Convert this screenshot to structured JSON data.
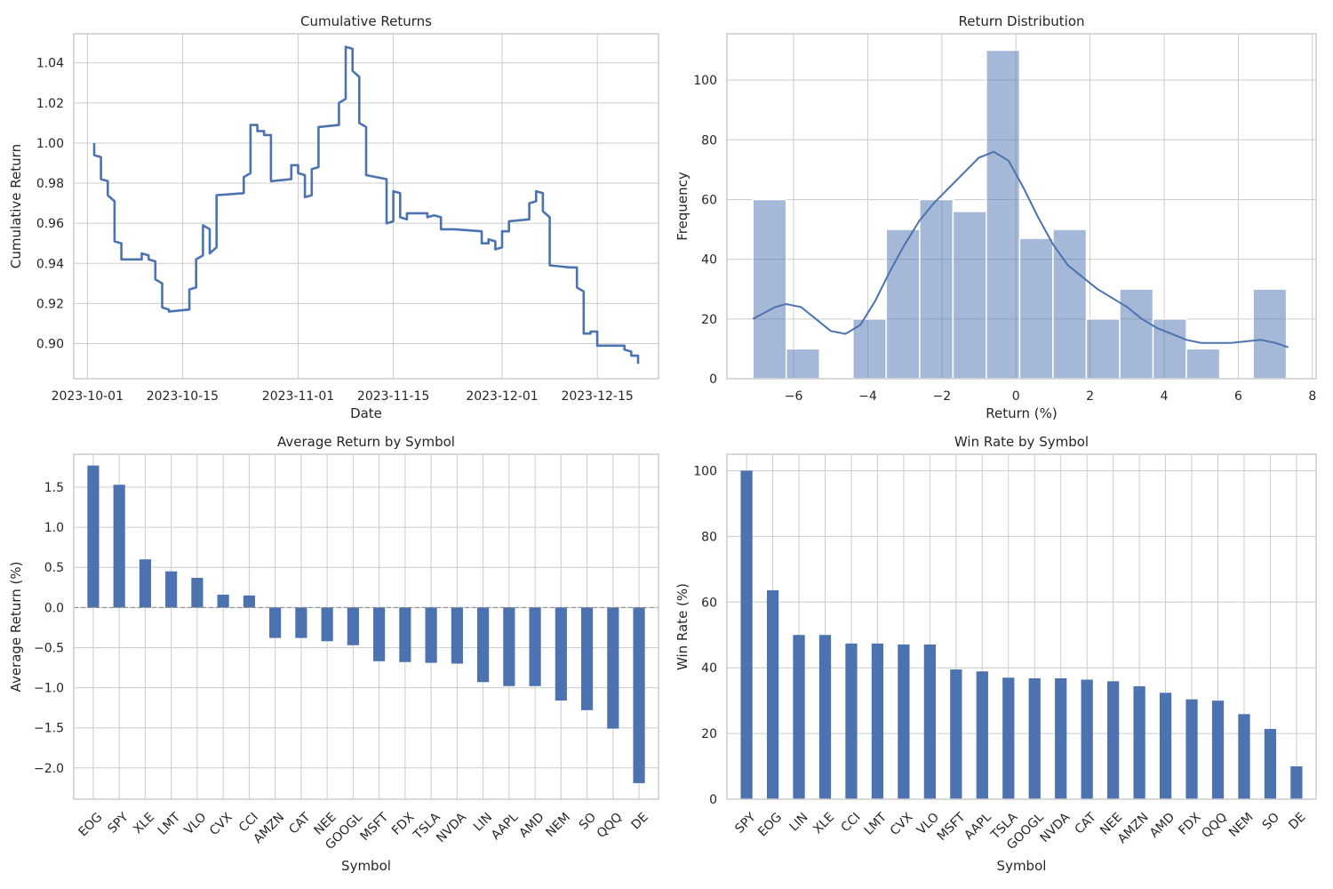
{
  "chart_data": [
    {
      "type": "line",
      "title": "Cumulative Returns",
      "xlabel": "Date",
      "ylabel": "Cumulative Return",
      "x_tick_labels": [
        "2023-10-01",
        "2023-10-15",
        "2023-11-01",
        "2023-11-15",
        "2023-12-01",
        "2023-12-15"
      ],
      "x_tick_dates": [
        "2023-10-01",
        "2023-10-15",
        "2023-11-01",
        "2023-11-15",
        "2023-12-01",
        "2023-12-15"
      ],
      "y_tick_labels": [
        "0.90",
        "0.92",
        "0.94",
        "0.96",
        "0.98",
        "1.00",
        "1.02",
        "1.04"
      ],
      "xlim": [
        "2023-09-29",
        "2023-12-24"
      ],
      "ylim": [
        0.8825,
        1.0545
      ],
      "grid": true,
      "color": "#4c72b0",
      "points": [
        [
          "2023-10-02",
          1.0
        ],
        [
          "2023-10-02",
          0.994
        ],
        [
          "2023-10-03",
          0.993
        ],
        [
          "2023-10-03",
          0.982
        ],
        [
          "2023-10-04",
          0.981
        ],
        [
          "2023-10-04",
          0.974
        ],
        [
          "2023-10-05",
          0.971
        ],
        [
          "2023-10-05",
          0.951
        ],
        [
          "2023-10-06",
          0.95
        ],
        [
          "2023-10-06",
          0.942
        ],
        [
          "2023-10-09",
          0.942
        ],
        [
          "2023-10-09",
          0.945
        ],
        [
          "2023-10-10",
          0.944
        ],
        [
          "2023-10-10",
          0.942
        ],
        [
          "2023-10-11",
          0.941
        ],
        [
          "2023-10-11",
          0.932
        ],
        [
          "2023-10-12",
          0.93
        ],
        [
          "2023-10-12",
          0.918
        ],
        [
          "2023-10-13",
          0.917
        ],
        [
          "2023-10-13",
          0.916
        ],
        [
          "2023-10-16",
          0.917
        ],
        [
          "2023-10-16",
          0.927
        ],
        [
          "2023-10-17",
          0.928
        ],
        [
          "2023-10-17",
          0.942
        ],
        [
          "2023-10-18",
          0.944
        ],
        [
          "2023-10-18",
          0.959
        ],
        [
          "2023-10-19",
          0.957
        ],
        [
          "2023-10-19",
          0.945
        ],
        [
          "2023-10-20",
          0.948
        ],
        [
          "2023-10-20",
          0.974
        ],
        [
          "2023-10-24",
          0.975
        ],
        [
          "2023-10-24",
          0.983
        ],
        [
          "2023-10-25",
          0.985
        ],
        [
          "2023-10-25",
          1.009
        ],
        [
          "2023-10-26",
          1.009
        ],
        [
          "2023-10-26",
          1.006
        ],
        [
          "2023-10-27",
          1.006
        ],
        [
          "2023-10-27",
          1.004
        ],
        [
          "2023-10-28",
          1.004
        ],
        [
          "2023-10-28",
          0.981
        ],
        [
          "2023-10-31",
          0.982
        ],
        [
          "2023-10-31",
          0.989
        ],
        [
          "2023-11-01",
          0.989
        ],
        [
          "2023-11-01",
          0.985
        ],
        [
          "2023-11-02",
          0.984
        ],
        [
          "2023-11-02",
          0.973
        ],
        [
          "2023-11-03",
          0.974
        ],
        [
          "2023-11-03",
          0.987
        ],
        [
          "2023-11-04",
          0.988
        ],
        [
          "2023-11-04",
          1.008
        ],
        [
          "2023-11-07",
          1.009
        ],
        [
          "2023-11-07",
          1.02
        ],
        [
          "2023-11-08",
          1.022
        ],
        [
          "2023-11-08",
          1.048
        ],
        [
          "2023-11-09",
          1.047
        ],
        [
          "2023-11-09",
          1.036
        ],
        [
          "2023-11-10",
          1.033
        ],
        [
          "2023-11-10",
          1.01
        ],
        [
          "2023-11-11",
          1.008
        ],
        [
          "2023-11-11",
          0.984
        ],
        [
          "2023-11-14",
          0.982
        ],
        [
          "2023-11-14",
          0.96
        ],
        [
          "2023-11-15",
          0.961
        ],
        [
          "2023-11-15",
          0.976
        ],
        [
          "2023-11-16",
          0.975
        ],
        [
          "2023-11-16",
          0.963
        ],
        [
          "2023-11-17",
          0.962
        ],
        [
          "2023-11-17",
          0.965
        ],
        [
          "2023-11-20",
          0.965
        ],
        [
          "2023-11-20",
          0.963
        ],
        [
          "2023-11-21",
          0.964
        ],
        [
          "2023-11-21",
          0.964
        ],
        [
          "2023-11-22",
          0.963
        ],
        [
          "2023-11-22",
          0.957
        ],
        [
          "2023-11-24",
          0.957
        ],
        [
          "2023-11-24",
          0.957
        ],
        [
          "2023-11-28",
          0.956
        ],
        [
          "2023-11-28",
          0.95
        ],
        [
          "2023-11-29",
          0.95
        ],
        [
          "2023-11-29",
          0.952
        ],
        [
          "2023-11-30",
          0.951
        ],
        [
          "2023-11-30",
          0.947
        ],
        [
          "2023-12-01",
          0.948
        ],
        [
          "2023-12-01",
          0.956
        ],
        [
          "2023-12-02",
          0.956
        ],
        [
          "2023-12-02",
          0.961
        ],
        [
          "2023-12-05",
          0.962
        ],
        [
          "2023-12-05",
          0.97
        ],
        [
          "2023-12-06",
          0.971
        ],
        [
          "2023-12-06",
          0.976
        ],
        [
          "2023-12-07",
          0.975
        ],
        [
          "2023-12-07",
          0.966
        ],
        [
          "2023-12-08",
          0.963
        ],
        [
          "2023-12-08",
          0.939
        ],
        [
          "2023-12-11",
          0.938
        ],
        [
          "2023-12-11",
          0.938
        ],
        [
          "2023-12-12",
          0.938
        ],
        [
          "2023-12-12",
          0.928
        ],
        [
          "2023-12-13",
          0.926
        ],
        [
          "2023-12-13",
          0.905
        ],
        [
          "2023-12-14",
          0.905
        ],
        [
          "2023-12-14",
          0.906
        ],
        [
          "2023-12-15",
          0.906
        ],
        [
          "2023-12-15",
          0.899
        ],
        [
          "2023-12-18",
          0.899
        ],
        [
          "2023-12-18",
          0.899
        ],
        [
          "2023-12-19",
          0.899
        ],
        [
          "2023-12-19",
          0.897
        ],
        [
          "2023-12-20",
          0.896
        ],
        [
          "2023-12-20",
          0.894
        ],
        [
          "2023-12-21",
          0.894
        ],
        [
          "2023-12-21",
          0.89
        ]
      ]
    },
    {
      "type": "bar",
      "title": "Return Distribution",
      "xlabel": "Return (%)",
      "ylabel": "Frequency",
      "x_ticks": [
        -6,
        -4,
        -2,
        0,
        2,
        4,
        6,
        8
      ],
      "x_tick_labels": [
        "−6",
        "−4",
        "−2",
        "0",
        "2",
        "4",
        "6",
        "8"
      ],
      "y_ticks": [
        0,
        20,
        40,
        60,
        80,
        100
      ],
      "y_tick_labels": [
        "0",
        "20",
        "40",
        "60",
        "80",
        "100"
      ],
      "xlim": [
        -7.8,
        8.1
      ],
      "ylim": [
        0,
        115.5
      ],
      "grid": true,
      "color": "#4c72b0",
      "bin_edges": [
        -7.1,
        -6.2,
        -5.3,
        -4.4,
        -3.5,
        -2.6,
        -1.7,
        -0.8,
        0.1,
        1.0,
        1.9,
        2.8,
        3.7,
        4.6,
        5.5,
        6.4,
        7.3
      ],
      "counts": [
        60,
        10,
        0,
        20,
        50,
        60,
        56,
        110,
        47,
        50,
        20,
        30,
        20,
        10,
        0,
        30
      ],
      "kde_x": [
        -7.1,
        -6.5,
        -6.2,
        -5.8,
        -5.4,
        -5.0,
        -4.6,
        -4.2,
        -3.8,
        -3.4,
        -3.0,
        -2.6,
        -2.2,
        -1.8,
        -1.4,
        -1.0,
        -0.6,
        -0.2,
        0.2,
        0.6,
        1.0,
        1.4,
        1.8,
        2.2,
        2.6,
        3.0,
        3.4,
        3.8,
        4.2,
        4.6,
        5.0,
        5.4,
        5.8,
        6.2,
        6.6,
        7.0,
        7.35
      ],
      "kde_y": [
        20,
        24,
        25,
        24,
        20,
        16,
        15,
        18,
        26,
        36,
        45,
        53,
        59,
        64,
        69,
        74,
        76,
        73,
        64,
        54,
        45,
        38,
        34,
        30,
        27,
        24,
        20,
        17,
        15,
        13,
        12,
        12,
        12,
        12.5,
        13,
        12,
        10.5
      ]
    },
    {
      "type": "bar",
      "title": "Average Return by Symbol",
      "xlabel": "Symbol",
      "ylabel": "Average Return (%)",
      "categories": [
        "EOG",
        "SPY",
        "XLE",
        "LMT",
        "VLO",
        "CVX",
        "CCI",
        "AMZN",
        "CAT",
        "NEE",
        "GOOGL",
        "MSFT",
        "FDX",
        "TSLA",
        "NVDA",
        "LIN",
        "AAPL",
        "AMD",
        "NEM",
        "SO",
        "QQQ",
        "DE"
      ],
      "values": [
        1.77,
        1.53,
        0.6,
        0.45,
        0.37,
        0.16,
        0.15,
        -0.38,
        -0.38,
        -0.42,
        -0.47,
        -0.67,
        -0.68,
        -0.69,
        -0.7,
        -0.93,
        -0.98,
        -0.98,
        -1.16,
        -1.28,
        -1.51,
        -2.19
      ],
      "y_ticks": [
        -2.0,
        -1.5,
        -1.0,
        -0.5,
        0.0,
        0.5,
        1.0,
        1.5
      ],
      "y_tick_labels": [
        "−2.0",
        "−1.5",
        "−1.0",
        "−0.5",
        "0.0",
        "0.5",
        "1.0",
        "1.5"
      ],
      "ylim": [
        -2.39,
        1.91
      ],
      "grid": true,
      "color": "#4c72b0"
    },
    {
      "type": "bar",
      "title": "Win Rate by Symbol",
      "xlabel": "Symbol",
      "ylabel": "Win Rate (%)",
      "categories": [
        "SPY",
        "EOG",
        "LIN",
        "XLE",
        "CCI",
        "LMT",
        "CVX",
        "VLO",
        "MSFT",
        "AAPL",
        "TSLA",
        "GOOGL",
        "NVDA",
        "CAT",
        "NEE",
        "AMZN",
        "AMD",
        "FDX",
        "QQQ",
        "NEM",
        "SO",
        "DE"
      ],
      "values": [
        100,
        63.6,
        50.0,
        50.0,
        47.4,
        47.4,
        47.1,
        47.1,
        39.5,
        38.9,
        37.0,
        36.8,
        36.8,
        36.4,
        35.9,
        34.4,
        32.4,
        30.4,
        30.0,
        25.9,
        21.4,
        10.0
      ],
      "y_ticks": [
        0,
        20,
        40,
        60,
        80,
        100
      ],
      "y_tick_labels": [
        "0",
        "20",
        "40",
        "60",
        "80",
        "100"
      ],
      "ylim": [
        0,
        105
      ],
      "grid": true,
      "color": "#4c72b0"
    }
  ]
}
